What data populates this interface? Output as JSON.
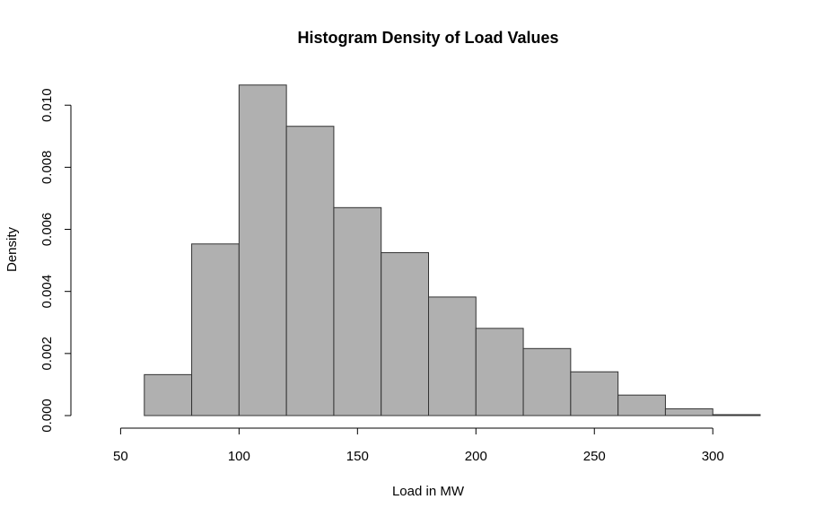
{
  "chart_data": {
    "type": "bar",
    "title": "Histogram Density of Load Values",
    "xlabel": "Load in MW",
    "ylabel": "Density",
    "bin_edges": [
      40,
      60,
      80,
      100,
      120,
      140,
      160,
      180,
      200,
      220,
      240,
      260,
      280,
      300,
      320
    ],
    "values": [
      0.0,
      0.00132,
      0.00553,
      0.01065,
      0.00932,
      0.0067,
      0.00525,
      0.00382,
      0.00281,
      0.00216,
      0.00141,
      0.00066,
      0.00022,
      3e-05
    ],
    "xticks": [
      50,
      100,
      150,
      200,
      250,
      300
    ],
    "xtick_labels": [
      "50",
      "100",
      "150",
      "200",
      "250",
      "300"
    ],
    "yticks": [
      0.0,
      0.002,
      0.004,
      0.006,
      0.008,
      0.01
    ],
    "ytick_labels": [
      "0.000",
      "0.002",
      "0.004",
      "0.006",
      "0.008",
      "0.010"
    ],
    "xlim": [
      40,
      320
    ],
    "ylim": [
      0,
      0.0107
    ],
    "bar_color": "#b0b0b0",
    "grid": false,
    "legend": "none"
  }
}
